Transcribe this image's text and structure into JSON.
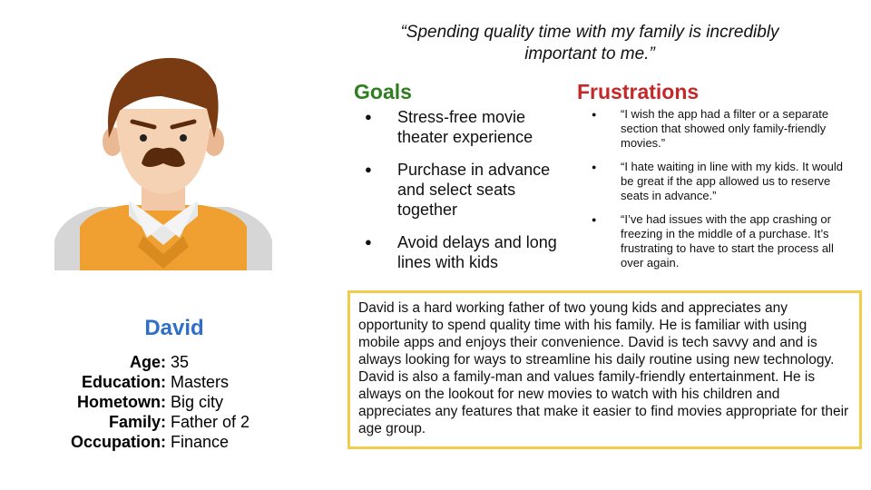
{
  "quote": "“Spending quality time with my family is incredibly important to me.”",
  "goals": {
    "title": "Goals",
    "items": [
      "Stress-free movie theater experience",
      "Purchase in advance and select seats together",
      "Avoid delays and long lines with kids"
    ]
  },
  "frustrations": {
    "title": "Frustrations",
    "items": [
      "“I wish the app had a filter or a separate section that showed only family-friendly movies.”",
      "“I hate waiting in line with my kids. It would be great if the app allowed us to reserve seats in advance.”",
      "“I’ve had issues with the app crashing or freezing in the middle of a purchase. It’s frustrating to have to start the process all over again."
    ]
  },
  "persona": {
    "name": "David",
    "details": [
      {
        "label": "Age:",
        "value": "35"
      },
      {
        "label": "Education:",
        "value": "Masters"
      },
      {
        "label": "Hometown:",
        "value": "Big city"
      },
      {
        "label": "Family:",
        "value": "Father of 2"
      },
      {
        "label": "Occupation:",
        "value": "Finance"
      }
    ]
  },
  "bio": "David is a hard working father of two young kids and appreciates any opportunity to spend quality time with his family. He is familiar with using mobile apps and enjoys their convenience. David is tech savvy and and is always looking for ways to streamline his daily routine using new technology. David is also a family-man and values family-friendly entertainment. He is always on the lookout for new movies to watch with his children and appreciates any features that make it easier to find movies appropriate for their age group.",
  "colors": {
    "goals": "#2e7d1f",
    "frustrations": "#c62828",
    "name": "#2f6fc7",
    "bio_border": "#f2cd4c"
  }
}
